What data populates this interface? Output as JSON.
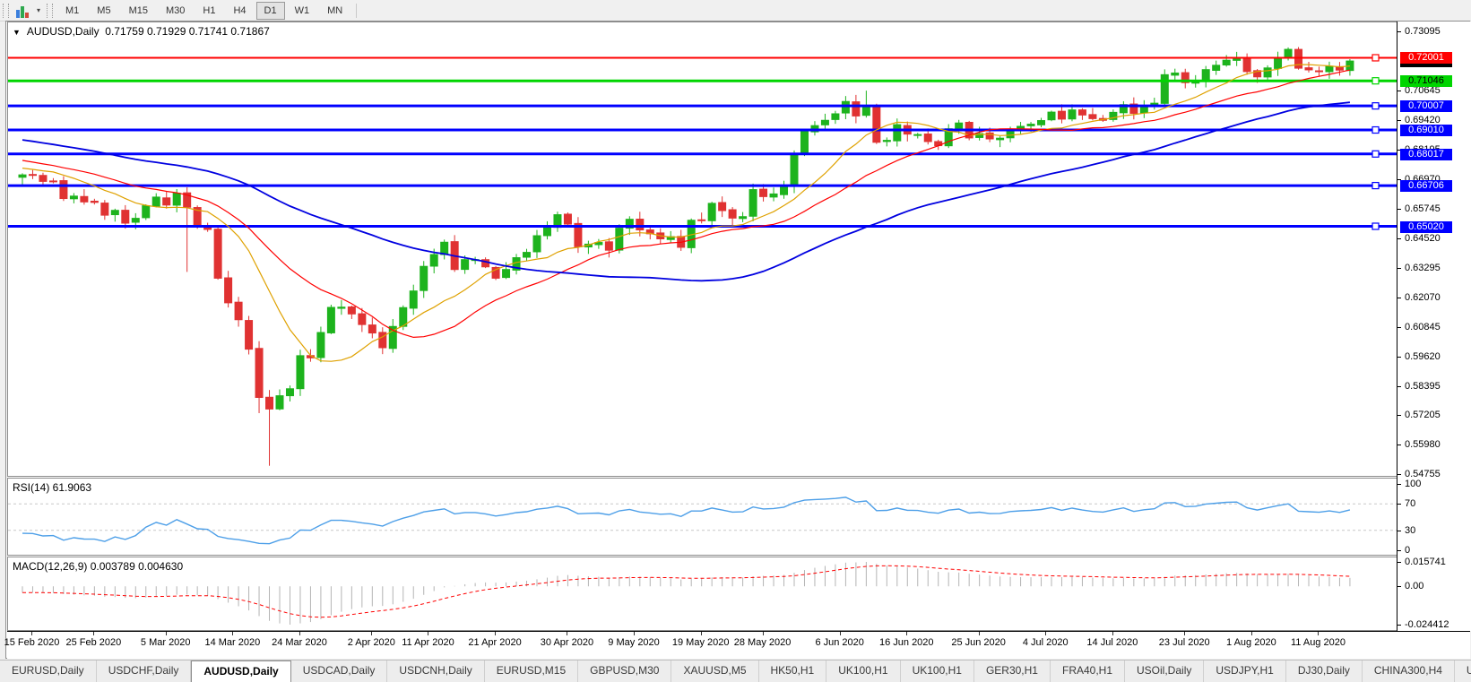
{
  "icons": {
    "collapse": "▼",
    "dropdown": "▾",
    "tab_scroll_left": "◄",
    "tab_scroll_right": "►"
  },
  "toolbar": {
    "timeframes": [
      "M1",
      "M5",
      "M15",
      "M30",
      "H1",
      "H4",
      "D1",
      "W1",
      "MN"
    ],
    "active_timeframe": "D1"
  },
  "chart": {
    "title": "AUDUSD,Daily",
    "ohlc": "0.71759 0.71929 0.71741 0.71867"
  },
  "tabs": {
    "items": [
      "EURUSD,Daily",
      "USDCHF,Daily",
      "AUDUSD,Daily",
      "USDCAD,Daily",
      "USDCNH,Daily",
      "EURUSD,M15",
      "GBPUSD,M30",
      "XAUUSD,M5",
      "HK50,H1",
      "UK100,H1",
      "UK100,H1",
      "GER30,H1",
      "FRA40,H1",
      "USOil,Daily",
      "USDJPY,H1",
      "DJ30,Daily",
      "CHINA300,H4",
      "USOil,D"
    ],
    "active_index": 2
  },
  "chart_data": {
    "type": "candlestick",
    "symbol": "AUDUSD",
    "timeframe": "Daily",
    "open": "0.71759",
    "high": "0.71929",
    "low": "0.71741",
    "close": "0.71867",
    "candle_up_color": "#1db31d",
    "candle_down_color": "#e03232",
    "price_axis_ticks": [
      "0.73095",
      "0.70645",
      "0.69420",
      "0.68195",
      "0.66970",
      "0.65745",
      "0.64520",
      "0.63295",
      "0.62070",
      "0.60845",
      "0.59620",
      "0.58395",
      "0.57205",
      "0.55980",
      "0.54755"
    ],
    "current_price": {
      "label": "0.71867",
      "bg": "#000000",
      "fg": "#ffffff"
    },
    "levels": [
      {
        "price": 0.72001,
        "label": "0.72001",
        "color": "#ff0000",
        "badge_fg": "#ffffff",
        "width": 2
      },
      {
        "price": 0.71046,
        "label": "0.71046",
        "color": "#00d500",
        "badge_fg": "#000000",
        "width": 3
      },
      {
        "price": 0.70007,
        "label": "0.70007",
        "color": "#0000ff",
        "badge_fg": "#ffffff",
        "width": 3
      },
      {
        "price": 0.6901,
        "label": "0.69010",
        "color": "#0000ff",
        "badge_fg": "#ffffff",
        "width": 3
      },
      {
        "price": 0.68017,
        "label": "0.68017",
        "color": "#0000ff",
        "badge_fg": "#ffffff",
        "width": 3
      },
      {
        "price": 0.66706,
        "label": "0.66706",
        "color": "#0000ff",
        "badge_fg": "#ffffff",
        "width": 3
      },
      {
        "price": 0.6502,
        "label": "0.65020",
        "color": "#0000ff",
        "badge_fg": "#ffffff",
        "width": 3
      }
    ],
    "dates": [
      {
        "label": "15 Feb 2020",
        "i": 1
      },
      {
        "label": "25 Feb 2020",
        "i": 7
      },
      {
        "label": "5 Mar 2020",
        "i": 14
      },
      {
        "label": "14 Mar 2020",
        "i": 20.5
      },
      {
        "label": "24 Mar 2020",
        "i": 27
      },
      {
        "label": "2 Apr 2020",
        "i": 34
      },
      {
        "label": "11 Apr 2020",
        "i": 39.5
      },
      {
        "label": "21 Apr 2020",
        "i": 46
      },
      {
        "label": "30 Apr 2020",
        "i": 53
      },
      {
        "label": "9 May 2020",
        "i": 59.5
      },
      {
        "label": "19 May 2020",
        "i": 66
      },
      {
        "label": "28 May 2020",
        "i": 72
      },
      {
        "label": "6 Jun 2020",
        "i": 79.5
      },
      {
        "label": "16 Jun 2020",
        "i": 86
      },
      {
        "label": "25 Jun 2020",
        "i": 93
      },
      {
        "label": "4 Jul 2020",
        "i": 99.5
      },
      {
        "label": "14 Jul 2020",
        "i": 106
      },
      {
        "label": "23 Jul 2020",
        "i": 113
      },
      {
        "label": "1 Aug 2020",
        "i": 119.5
      },
      {
        "label": "11 Aug 2020",
        "i": 126
      }
    ],
    "closes": [
      0.6715,
      0.6713,
      0.6688,
      0.6689,
      0.6617,
      0.6627,
      0.6603,
      0.6601,
      0.6548,
      0.6568,
      0.6515,
      0.6535,
      0.6587,
      0.6623,
      0.659,
      0.6639,
      0.6581,
      0.65,
      0.6489,
      0.6287,
      0.6185,
      0.6115,
      0.5993,
      0.5793,
      0.5745,
      0.58,
      0.5829,
      0.5966,
      0.5957,
      0.6062,
      0.6166,
      0.6167,
      0.6139,
      0.6095,
      0.606,
      0.5999,
      0.6087,
      0.6165,
      0.6234,
      0.6336,
      0.6385,
      0.6436,
      0.6323,
      0.6364,
      0.6364,
      0.6334,
      0.6287,
      0.6323,
      0.6372,
      0.6394,
      0.6463,
      0.6497,
      0.655,
      0.6511,
      0.6417,
      0.6428,
      0.6435,
      0.6403,
      0.6494,
      0.6531,
      0.6487,
      0.6471,
      0.645,
      0.6459,
      0.6415,
      0.6527,
      0.6527,
      0.6597,
      0.6567,
      0.6536,
      0.6542,
      0.6654,
      0.6625,
      0.6636,
      0.6667,
      0.6797,
      0.6895,
      0.6919,
      0.6941,
      0.6968,
      0.7019,
      0.6959,
      0.7,
      0.685,
      0.6858,
      0.6923,
      0.6884,
      0.6882,
      0.6853,
      0.6836,
      0.6906,
      0.693,
      0.6868,
      0.6886,
      0.6864,
      0.6867,
      0.6903,
      0.6916,
      0.6925,
      0.694,
      0.6975,
      0.6946,
      0.6984,
      0.6963,
      0.6948,
      0.6941,
      0.6974,
      0.7006,
      0.697,
      0.6997,
      0.7012,
      0.713,
      0.7137,
      0.7097,
      0.7104,
      0.7151,
      0.7169,
      0.719,
      0.7195,
      0.7143,
      0.7121,
      0.7158,
      0.7198,
      0.7235,
      0.7157,
      0.715,
      0.7144,
      0.7165,
      0.7149,
      0.71867
    ],
    "pre_trend": {
      "from": 0.7005,
      "to": 0.6725,
      "count": 50
    },
    "wick_overrides": {
      "16": {
        "low": 0.6313
      },
      "23": {
        "low": 0.5728
      },
      "24": {
        "low": 0.551
      },
      "82": {
        "high": 0.7064
      },
      "123": {
        "high": 0.7243
      }
    },
    "moving_averages": [
      {
        "period": 10,
        "color": "#dfa100",
        "width": 1.2
      },
      {
        "period": 20,
        "color": "#ff0000",
        "width": 1.2
      },
      {
        "period": 50,
        "color": "#0000e0",
        "width": 1.8
      }
    ],
    "scale": {
      "tick_top": 0.73095,
      "tick_bottom": 0.54755
    },
    "rsi": {
      "period": 14,
      "label": "RSI(14) 61.9063",
      "value": "61.9063",
      "axis": [
        "100",
        "70",
        "30",
        "0"
      ],
      "levels": [
        70,
        30
      ],
      "range": [
        0,
        100
      ],
      "color": "#4d9fe8",
      "level_color": "#c8c8c8"
    },
    "macd": {
      "fast": 12,
      "slow": 26,
      "signal_period": 9,
      "label": "MACD(12,26,9) 0.003789 0.004630",
      "macd_value": "0.003789",
      "signal_value": "0.004630",
      "axis_top": "0.015741",
      "axis_zero": "0.00",
      "axis_bottom": "-0.024412",
      "hist_color": "#b4b4b4",
      "signal_color": "#ff0000"
    }
  }
}
